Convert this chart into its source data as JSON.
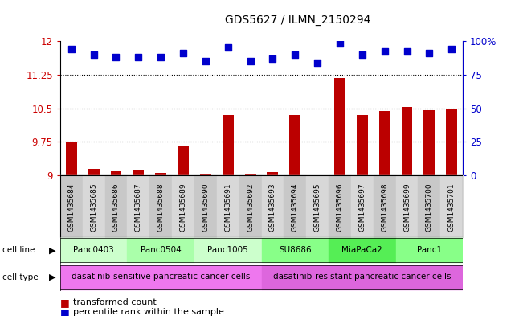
{
  "title": "GDS5627 / ILMN_2150294",
  "samples": [
    "GSM1435684",
    "GSM1435685",
    "GSM1435686",
    "GSM1435687",
    "GSM1435688",
    "GSM1435689",
    "GSM1435690",
    "GSM1435691",
    "GSM1435692",
    "GSM1435693",
    "GSM1435694",
    "GSM1435695",
    "GSM1435696",
    "GSM1435697",
    "GSM1435698",
    "GSM1435699",
    "GSM1435700",
    "GSM1435701"
  ],
  "transformed_count": [
    9.75,
    9.15,
    9.1,
    9.13,
    9.05,
    9.67,
    9.02,
    10.35,
    9.02,
    9.08,
    10.35,
    9.01,
    11.18,
    10.35,
    10.43,
    10.52,
    10.45,
    10.5
  ],
  "percentile_rank": [
    94,
    90,
    88,
    88,
    88,
    91,
    85,
    95,
    85,
    87,
    90,
    84,
    98,
    90,
    92,
    92,
    91,
    94
  ],
  "ylim_left": [
    9.0,
    12.0
  ],
  "ylim_right": [
    0,
    100
  ],
  "yticks_left": [
    9.0,
    9.75,
    10.5,
    11.25,
    12.0
  ],
  "ytick_labels_left": [
    "9",
    "9.75",
    "10.5",
    "11.25",
    "12"
  ],
  "yticks_right": [
    0,
    25,
    50,
    75,
    100
  ],
  "ytick_labels_right": [
    "0",
    "25",
    "50",
    "75",
    "100%"
  ],
  "hlines": [
    9.75,
    10.5,
    11.25
  ],
  "bar_color": "#bb0000",
  "dot_color": "#0000cc",
  "bar_width": 0.5,
  "dot_size": 40,
  "tick_color_left": "#cc0000",
  "tick_color_right": "#0000cc",
  "cell_line_groups": [
    {
      "label": "Panc0403",
      "start": 0,
      "end": 3,
      "color": "#ccffcc"
    },
    {
      "label": "Panc0504",
      "start": 3,
      "end": 6,
      "color": "#aaffaa"
    },
    {
      "label": "Panc1005",
      "start": 6,
      "end": 9,
      "color": "#ccffcc"
    },
    {
      "label": "SU8686",
      "start": 9,
      "end": 12,
      "color": "#88ff88"
    },
    {
      "label": "MiaPaCa2",
      "start": 12,
      "end": 15,
      "color": "#55ee55"
    },
    {
      "label": "Panc1",
      "start": 15,
      "end": 18,
      "color": "#88ff88"
    }
  ],
  "cell_type_groups": [
    {
      "label": "dasatinib-sensitive pancreatic cancer cells",
      "start": 0,
      "end": 9,
      "color": "#ee77ee"
    },
    {
      "label": "dasatinib-resistant pancreatic cancer cells",
      "start": 9,
      "end": 18,
      "color": "#dd66dd"
    }
  ],
  "sample_col_colors": [
    "#c8c8c8",
    "#d8d8d8"
  ],
  "legend_bar_color": "#bb0000",
  "legend_dot_color": "#0000cc"
}
